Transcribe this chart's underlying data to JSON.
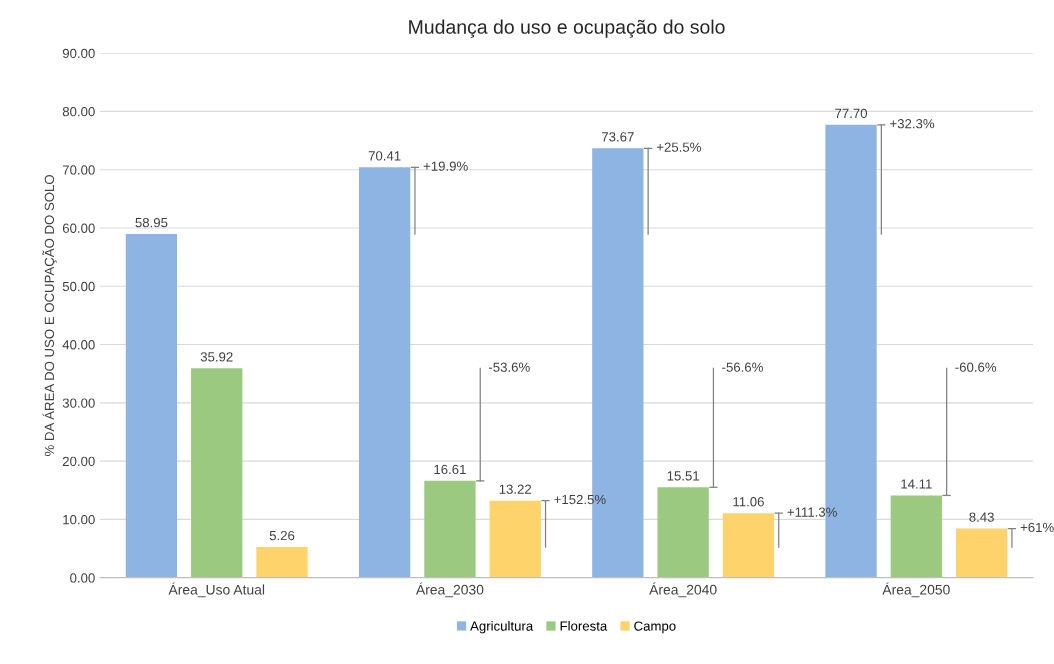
{
  "chart_data": {
    "type": "bar",
    "title": "Mudança do uso e ocupação do solo",
    "ylabel": "% DA ÁREA DO USO E OCUPAÇÃO DO SOLO",
    "categories": [
      "Área_Uso Atual",
      "Área_2030",
      "Área_2040",
      "Área_2050"
    ],
    "series": [
      {
        "name": "Agricultura",
        "color": "#8eb4e3",
        "values": [
          58.95,
          70.41,
          73.67,
          77.7
        ],
        "value_labels": [
          "58.95",
          "70.41",
          "73.67",
          "77.70"
        ]
      },
      {
        "name": "Floresta",
        "color": "#9bc97f",
        "values": [
          35.92,
          16.61,
          15.51,
          14.11
        ],
        "value_labels": [
          "35.92",
          "16.61",
          "15.51",
          "14.11"
        ]
      },
      {
        "name": "Campo",
        "color": "#ffd36b",
        "values": [
          5.26,
          13.22,
          11.06,
          8.43
        ],
        "value_labels": [
          "5.26",
          "13.22",
          "11.06",
          "8.43"
        ]
      }
    ],
    "annotations": [
      "+19.9%",
      "-53.6%",
      "+152.5%",
      "+25.5%",
      "-56.6%",
      "+111.3%",
      "+32.3%",
      "-60.6%",
      "+61%"
    ],
    "ylim": [
      0,
      90
    ],
    "yticks": [
      {
        "value": 0,
        "label": "0.00"
      },
      {
        "value": 10,
        "label": "10.00"
      },
      {
        "value": 20,
        "label": "20.00"
      },
      {
        "value": 30,
        "label": "30.00"
      },
      {
        "value": 40,
        "label": "40.00"
      },
      {
        "value": 50,
        "label": "50.00"
      },
      {
        "value": 60,
        "label": "60.00"
      },
      {
        "value": 70,
        "label": "70.00"
      },
      {
        "value": 80,
        "label": "80.00"
      },
      {
        "value": 90,
        "label": "90.00"
      }
    ],
    "grid": "y",
    "legend": "bottom"
  }
}
